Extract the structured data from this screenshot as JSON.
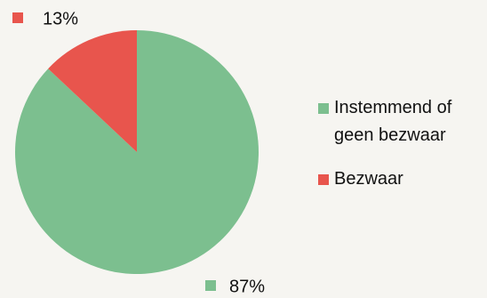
{
  "chart_data": {
    "type": "pie",
    "categories": [
      "Instemmend of geen bezwaar",
      "Bezwaar"
    ],
    "values": [
      87,
      13
    ],
    "value_labels": [
      "87%",
      "13%"
    ],
    "colors": [
      "#7cbf8f",
      "#e8554d"
    ],
    "legend": "right"
  }
}
